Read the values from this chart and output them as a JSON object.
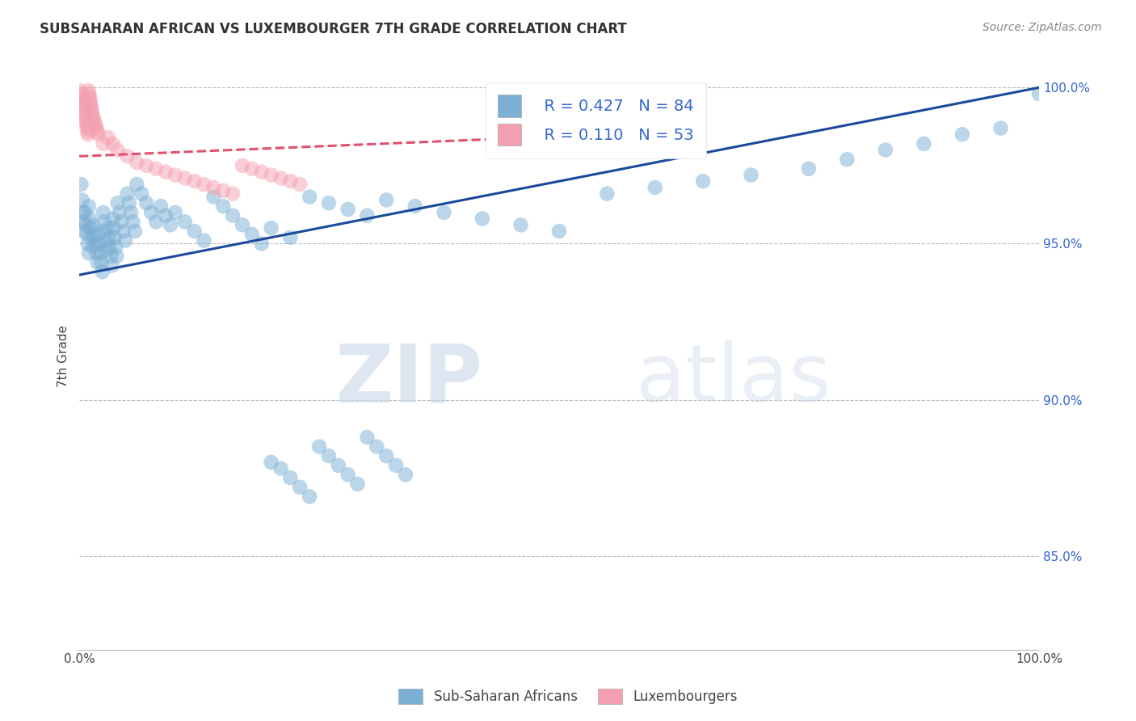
{
  "title": "SUBSAHARAN AFRICAN VS LUXEMBOURGER 7TH GRADE CORRELATION CHART",
  "source": "Source: ZipAtlas.com",
  "ylabel": "7th Grade",
  "ytick_labels": [
    "85.0%",
    "90.0%",
    "95.0%",
    "100.0%"
  ],
  "ytick_values": [
    0.85,
    0.9,
    0.95,
    1.0
  ],
  "legend_blue_label": "Sub-Saharan Africans",
  "legend_pink_label": "Luxembourgers",
  "legend_r_blue": "R = 0.427",
  "legend_n_blue": "N = 84",
  "legend_r_pink": "R = 0.110",
  "legend_n_pink": "N = 53",
  "blue_color": "#7BAFD4",
  "pink_color": "#F4A0B0",
  "blue_line_color": "#1A4A9B",
  "pink_line_color": "#E05070",
  "watermark_zip": "ZIP",
  "watermark_atlas": "atlas",
  "xlim": [
    0.0,
    1.0
  ],
  "ylim": [
    0.82,
    1.008
  ],
  "blue_scatter_x": [
    0.002,
    0.003,
    0.004,
    0.004,
    0.005,
    0.006,
    0.007,
    0.008,
    0.009,
    0.01,
    0.01,
    0.011,
    0.012,
    0.013,
    0.014,
    0.015,
    0.016,
    0.017,
    0.018,
    0.019,
    0.02,
    0.021,
    0.022,
    0.023,
    0.024,
    0.025,
    0.026,
    0.027,
    0.028,
    0.029,
    0.03,
    0.031,
    0.032,
    0.033,
    0.034,
    0.035,
    0.036,
    0.037,
    0.038,
    0.039,
    0.04,
    0.042,
    0.044,
    0.046,
    0.048,
    0.05,
    0.052,
    0.054,
    0.056,
    0.058,
    0.06,
    0.065,
    0.07,
    0.075,
    0.08,
    0.085,
    0.09,
    0.095,
    0.1,
    0.11,
    0.12,
    0.13,
    0.14,
    0.15,
    0.16,
    0.17,
    0.18,
    0.19,
    0.2,
    0.22,
    0.24,
    0.26,
    0.28,
    0.3,
    0.32,
    0.35,
    0.38,
    0.42,
    0.46,
    0.5,
    0.55,
    0.6,
    0.65,
    0.7
  ],
  "blue_scatter_y": [
    0.969,
    0.964,
    0.96,
    0.957,
    0.954,
    0.96,
    0.956,
    0.953,
    0.95,
    0.947,
    0.962,
    0.958,
    0.955,
    0.952,
    0.949,
    0.956,
    0.953,
    0.95,
    0.947,
    0.944,
    0.953,
    0.95,
    0.947,
    0.944,
    0.941,
    0.96,
    0.957,
    0.954,
    0.951,
    0.948,
    0.955,
    0.952,
    0.949,
    0.946,
    0.943,
    0.958,
    0.955,
    0.952,
    0.949,
    0.946,
    0.963,
    0.96,
    0.957,
    0.954,
    0.951,
    0.966,
    0.963,
    0.96,
    0.957,
    0.954,
    0.969,
    0.966,
    0.963,
    0.96,
    0.957,
    0.962,
    0.959,
    0.956,
    0.96,
    0.957,
    0.954,
    0.951,
    0.965,
    0.962,
    0.959,
    0.956,
    0.953,
    0.95,
    0.955,
    0.952,
    0.965,
    0.963,
    0.961,
    0.959,
    0.964,
    0.962,
    0.96,
    0.958,
    0.956,
    0.954,
    0.966,
    0.968,
    0.97,
    0.972
  ],
  "blue_scatter_y_low": [
    0.88,
    0.878,
    0.875,
    0.872,
    0.869,
    0.885,
    0.882,
    0.879,
    0.876,
    0.873,
    0.888,
    0.885,
    0.882,
    0.879,
    0.876
  ],
  "blue_scatter_x_low": [
    0.2,
    0.21,
    0.22,
    0.23,
    0.24,
    0.25,
    0.26,
    0.27,
    0.28,
    0.29,
    0.3,
    0.31,
    0.32,
    0.33,
    0.34
  ],
  "blue_scatter_x2": [
    0.76,
    0.8,
    0.84,
    0.88,
    0.92,
    0.96,
    1.0
  ],
  "blue_scatter_y2": [
    0.974,
    0.977,
    0.98,
    0.982,
    0.985,
    0.987,
    0.998
  ],
  "pink_scatter_x": [
    0.001,
    0.002,
    0.003,
    0.004,
    0.004,
    0.005,
    0.005,
    0.006,
    0.006,
    0.007,
    0.007,
    0.008,
    0.008,
    0.009,
    0.009,
    0.01,
    0.01,
    0.011,
    0.011,
    0.012,
    0.012,
    0.013,
    0.013,
    0.014,
    0.015,
    0.016,
    0.017,
    0.018,
    0.019,
    0.02,
    0.025,
    0.03,
    0.035,
    0.04,
    0.05,
    0.06,
    0.07,
    0.08,
    0.09,
    0.1,
    0.11,
    0.12,
    0.13,
    0.14,
    0.15,
    0.16,
    0.17,
    0.18,
    0.19,
    0.2,
    0.21,
    0.22,
    0.23
  ],
  "pink_scatter_y": [
    0.999,
    0.998,
    0.997,
    0.996,
    0.995,
    0.994,
    0.993,
    0.992,
    0.991,
    0.99,
    0.989,
    0.988,
    0.987,
    0.986,
    0.985,
    0.999,
    0.998,
    0.997,
    0.996,
    0.995,
    0.994,
    0.993,
    0.992,
    0.991,
    0.99,
    0.989,
    0.988,
    0.987,
    0.986,
    0.985,
    0.982,
    0.984,
    0.982,
    0.98,
    0.978,
    0.976,
    0.975,
    0.974,
    0.973,
    0.972,
    0.971,
    0.97,
    0.969,
    0.968,
    0.967,
    0.966,
    0.975,
    0.974,
    0.973,
    0.972,
    0.971,
    0.97,
    0.969
  ],
  "blue_line_x": [
    0.0,
    1.0
  ],
  "blue_line_y": [
    0.94,
    1.0
  ],
  "pink_line_x": [
    0.0,
    0.55
  ],
  "pink_line_y": [
    0.978,
    0.985
  ]
}
